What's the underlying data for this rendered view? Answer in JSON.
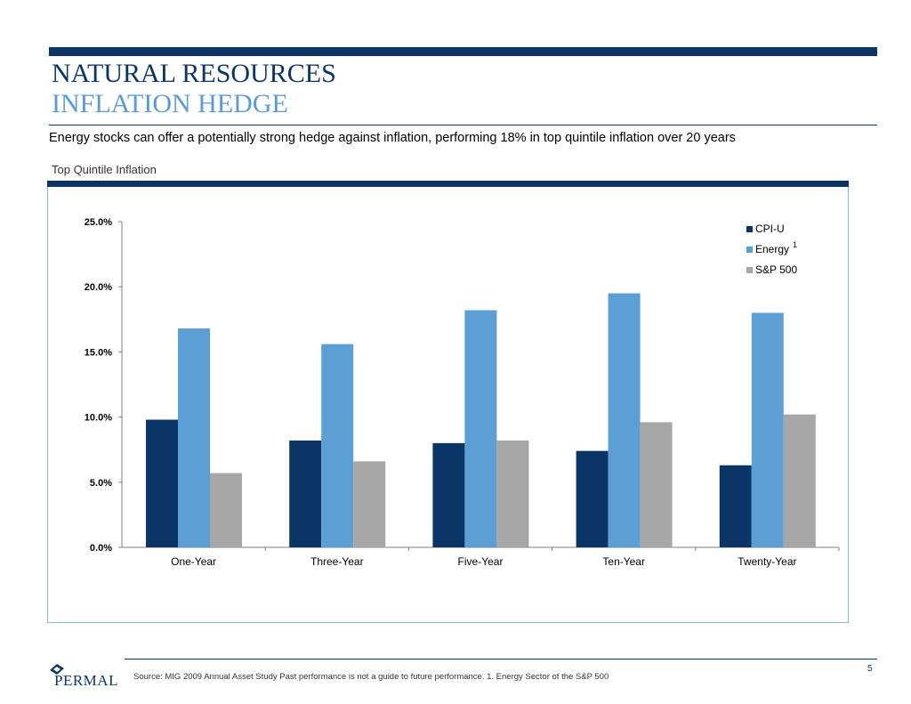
{
  "header": {
    "title": "NATURAL RESOURCES",
    "subtitle": "INFLATION HEDGE",
    "lead": "Energy stocks can offer a potentially strong hedge against inflation, performing 18% in top quintile inflation over 20 years",
    "section_label": "Top Quintile Inflation"
  },
  "chart_data": {
    "type": "bar",
    "categories": [
      "One-Year",
      "Three-Year",
      "Five-Year",
      "Ten-Year",
      "Twenty-Year"
    ],
    "series": [
      {
        "name": "CPI-U",
        "color": "#0b3565",
        "values": [
          9.8,
          8.2,
          8.0,
          7.4,
          6.3
        ]
      },
      {
        "name": "Energy",
        "superscript": "1",
        "color": "#5b9fd5",
        "values": [
          16.8,
          15.6,
          18.2,
          19.5,
          18.0
        ]
      },
      {
        "name": "S&P 500",
        "color": "#a6a6a6",
        "values": [
          5.7,
          6.6,
          8.2,
          9.6,
          10.2
        ]
      }
    ],
    "ylim": [
      0,
      25
    ],
    "yticks": [
      "0.0%",
      "5.0%",
      "10.0%",
      "15.0%",
      "20.0%",
      "25.0%"
    ],
    "grid": false,
    "legend": "top-right"
  },
  "footer": {
    "page_number": "5",
    "logo_text": "PERMAL",
    "source_text": "Source: MIG 2009 Annual Asset Study Past performance is not a guide to future performance. 1.  Energy Sector of the S&P 500"
  }
}
